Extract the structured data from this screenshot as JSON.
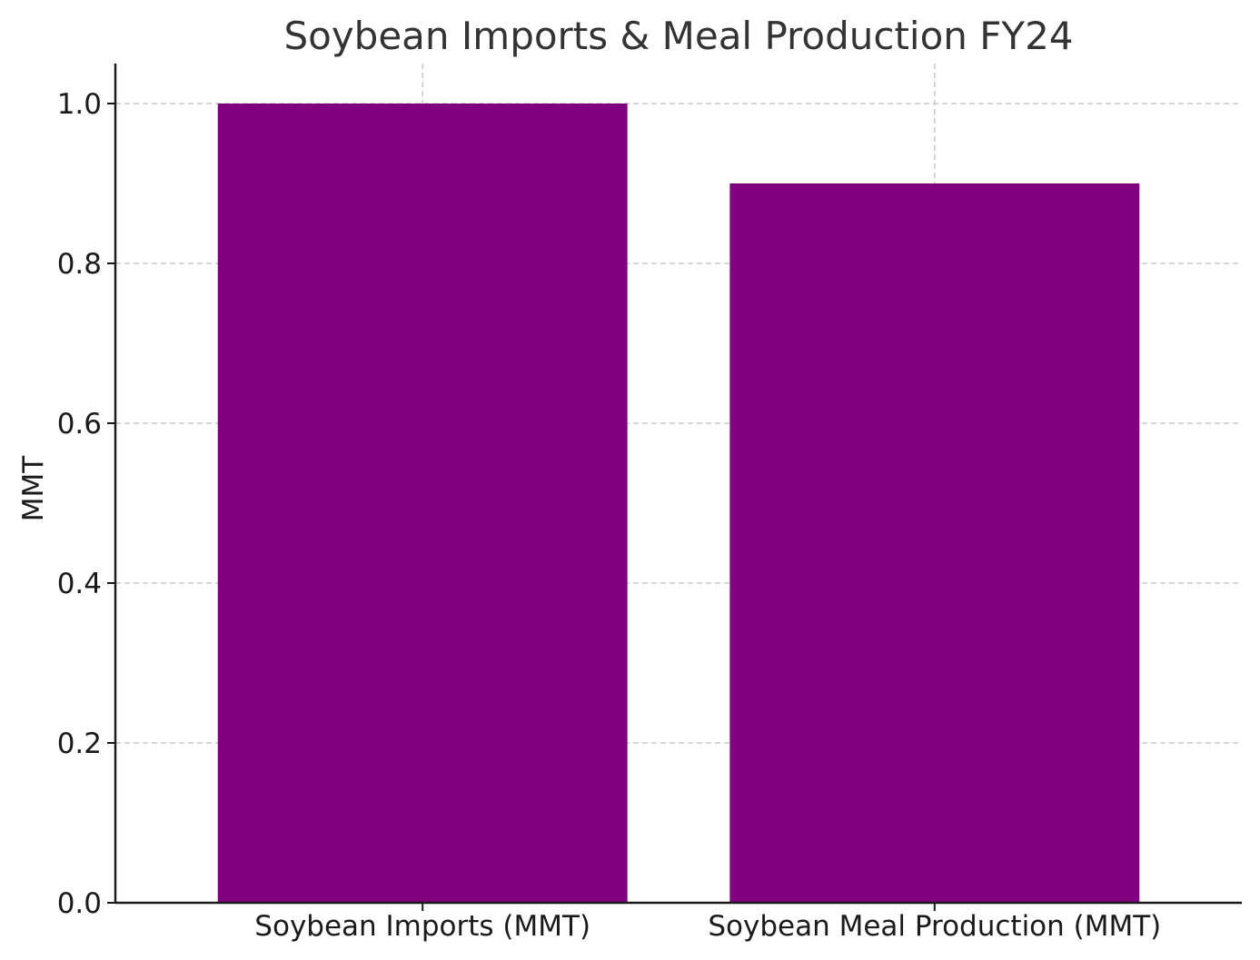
{
  "chart_data": {
    "type": "bar",
    "title": "Soybean Imports & Meal Production FY24",
    "xlabel": "",
    "ylabel": "MMT",
    "categories": [
      "Soybean Imports (MMT)",
      "Soybean Meal Production (MMT)"
    ],
    "values": [
      1.0,
      0.9
    ],
    "ylim": [
      0,
      1.05
    ],
    "yticks": [
      0.0,
      0.2,
      0.4,
      0.6,
      0.8,
      1.0
    ],
    "ytick_labels": [
      "0.0",
      "0.2",
      "0.4",
      "0.6",
      "0.8",
      "1.0"
    ],
    "bar_color": "#800080",
    "grid": true,
    "legend": "none"
  }
}
